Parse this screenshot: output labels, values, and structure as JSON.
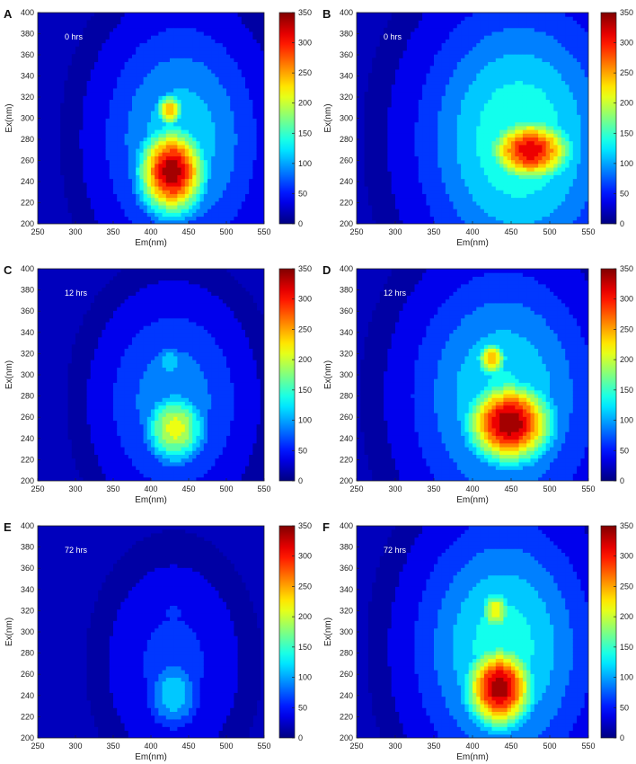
{
  "chart_data": [
    {
      "type": "heatmap",
      "panel_label": "A",
      "annotation": "0 hrs",
      "xlabel": "Em(nm)",
      "ylabel": "Ex(nm)",
      "xlim": [
        250,
        550
      ],
      "ylim": [
        200,
        400
      ],
      "x_ticks": [
        250,
        300,
        350,
        400,
        450,
        500,
        550
      ],
      "y_ticks": [
        200,
        220,
        240,
        260,
        280,
        300,
        320,
        340,
        360,
        380,
        400
      ],
      "colorbar": {
        "range": [
          0,
          350
        ],
        "ticks": [
          0,
          50,
          100,
          150,
          200,
          250,
          300,
          350
        ]
      },
      "peaks": [
        {
          "em": 428,
          "ex": 250,
          "intensity": 345,
          "spread_em": 32,
          "spread_ex": 30
        },
        {
          "em": 425,
          "ex": 308,
          "intensity": 250,
          "spread_em": 14,
          "spread_ex": 12
        }
      ],
      "background_blob": {
        "em": 440,
        "ex": 280,
        "intensity": 120,
        "spread_em": 75,
        "spread_ex": 80
      }
    },
    {
      "type": "heatmap",
      "panel_label": "B",
      "annotation": "0 hrs",
      "xlabel": "Em(nm)",
      "ylabel": "Ex(nm)",
      "xlim": [
        250,
        550
      ],
      "ylim": [
        200,
        400
      ],
      "x_ticks": [
        250,
        300,
        350,
        400,
        450,
        500,
        550
      ],
      "y_ticks": [
        200,
        220,
        240,
        260,
        280,
        300,
        320,
        340,
        360,
        380,
        400
      ],
      "colorbar": {
        "range": [
          0,
          350
        ],
        "ticks": [
          0,
          50,
          100,
          150,
          200,
          250,
          300,
          350
        ]
      },
      "peaks": [
        {
          "em": 475,
          "ex": 270,
          "intensity": 320,
          "spread_em": 40,
          "spread_ex": 22
        }
      ],
      "background_blob": {
        "em": 460,
        "ex": 280,
        "intensity": 150,
        "spread_em": 90,
        "spread_ex": 90
      }
    },
    {
      "type": "heatmap",
      "panel_label": "C",
      "annotation": "12 hrs",
      "xlabel": "Em(nm)",
      "ylabel": "Ex(nm)",
      "xlim": [
        250,
        550
      ],
      "ylim": [
        200,
        400
      ],
      "x_ticks": [
        250,
        300,
        350,
        400,
        450,
        500,
        550
      ],
      "y_ticks": [
        200,
        220,
        240,
        260,
        280,
        300,
        320,
        340,
        360,
        380,
        400
      ],
      "colorbar": {
        "range": [
          0,
          350
        ],
        "ticks": [
          0,
          50,
          100,
          150,
          200,
          250,
          300,
          350
        ]
      },
      "peaks": [
        {
          "em": 432,
          "ex": 250,
          "intensity": 215,
          "spread_em": 30,
          "spread_ex": 25
        },
        {
          "em": 425,
          "ex": 312,
          "intensity": 125,
          "spread_em": 15,
          "spread_ex": 13
        }
      ],
      "background_blob": {
        "em": 430,
        "ex": 275,
        "intensity": 95,
        "spread_em": 70,
        "spread_ex": 70
      }
    },
    {
      "type": "heatmap",
      "panel_label": "D",
      "annotation": "12 hrs",
      "xlabel": "Em(nm)",
      "ylabel": "Ex(nm)",
      "xlim": [
        250,
        550
      ],
      "ylim": [
        200,
        400
      ],
      "x_ticks": [
        250,
        300,
        350,
        400,
        450,
        500,
        550
      ],
      "y_ticks": [
        200,
        220,
        240,
        260,
        280,
        300,
        320,
        340,
        360,
        380,
        400
      ],
      "colorbar": {
        "range": [
          0,
          350
        ],
        "ticks": [
          0,
          50,
          100,
          150,
          200,
          250,
          300,
          350
        ]
      },
      "peaks": [
        {
          "em": 448,
          "ex": 255,
          "intensity": 350,
          "spread_em": 40,
          "spread_ex": 28
        },
        {
          "em": 425,
          "ex": 315,
          "intensity": 250,
          "spread_em": 15,
          "spread_ex": 13
        }
      ],
      "background_blob": {
        "em": 440,
        "ex": 280,
        "intensity": 130,
        "spread_em": 85,
        "spread_ex": 85
      }
    },
    {
      "type": "heatmap",
      "panel_label": "E",
      "annotation": "72 hrs",
      "xlabel": "Em(nm)",
      "ylabel": "Ex(nm)",
      "xlim": [
        250,
        550
      ],
      "ylim": [
        200,
        400
      ],
      "x_ticks": [
        250,
        300,
        350,
        400,
        450,
        500,
        550
      ],
      "y_ticks": [
        200,
        220,
        240,
        260,
        280,
        300,
        320,
        340,
        360,
        380,
        400
      ],
      "colorbar": {
        "range": [
          0,
          350
        ],
        "ticks": [
          0,
          50,
          100,
          150,
          200,
          250,
          300,
          350
        ]
      },
      "peaks": [
        {
          "em": 430,
          "ex": 242,
          "intensity": 125,
          "spread_em": 26,
          "spread_ex": 25
        },
        {
          "em": 430,
          "ex": 318,
          "intensity": 60,
          "spread_em": 13,
          "spread_ex": 12
        }
      ],
      "background_blob": {
        "em": 430,
        "ex": 270,
        "intensity": 60,
        "spread_em": 65,
        "spread_ex": 70
      }
    },
    {
      "type": "heatmap",
      "panel_label": "F",
      "annotation": "72 hrs",
      "xlabel": "Em(nm)",
      "ylabel": "Ex(nm)",
      "xlim": [
        250,
        550
      ],
      "ylim": [
        200,
        400
      ],
      "x_ticks": [
        250,
        300,
        350,
        400,
        450,
        500,
        550
      ],
      "y_ticks": [
        200,
        220,
        240,
        260,
        280,
        300,
        320,
        340,
        360,
        380,
        400
      ],
      "colorbar": {
        "range": [
          0,
          350
        ],
        "ticks": [
          0,
          50,
          100,
          150,
          200,
          250,
          300,
          350
        ]
      },
      "peaks": [
        {
          "em": 435,
          "ex": 248,
          "intensity": 345,
          "spread_em": 32,
          "spread_ex": 28
        },
        {
          "em": 430,
          "ex": 320,
          "intensity": 225,
          "spread_em": 15,
          "spread_ex": 15
        }
      ],
      "background_blob": {
        "em": 440,
        "ex": 285,
        "intensity": 140,
        "spread_em": 80,
        "spread_ex": 85
      }
    }
  ]
}
